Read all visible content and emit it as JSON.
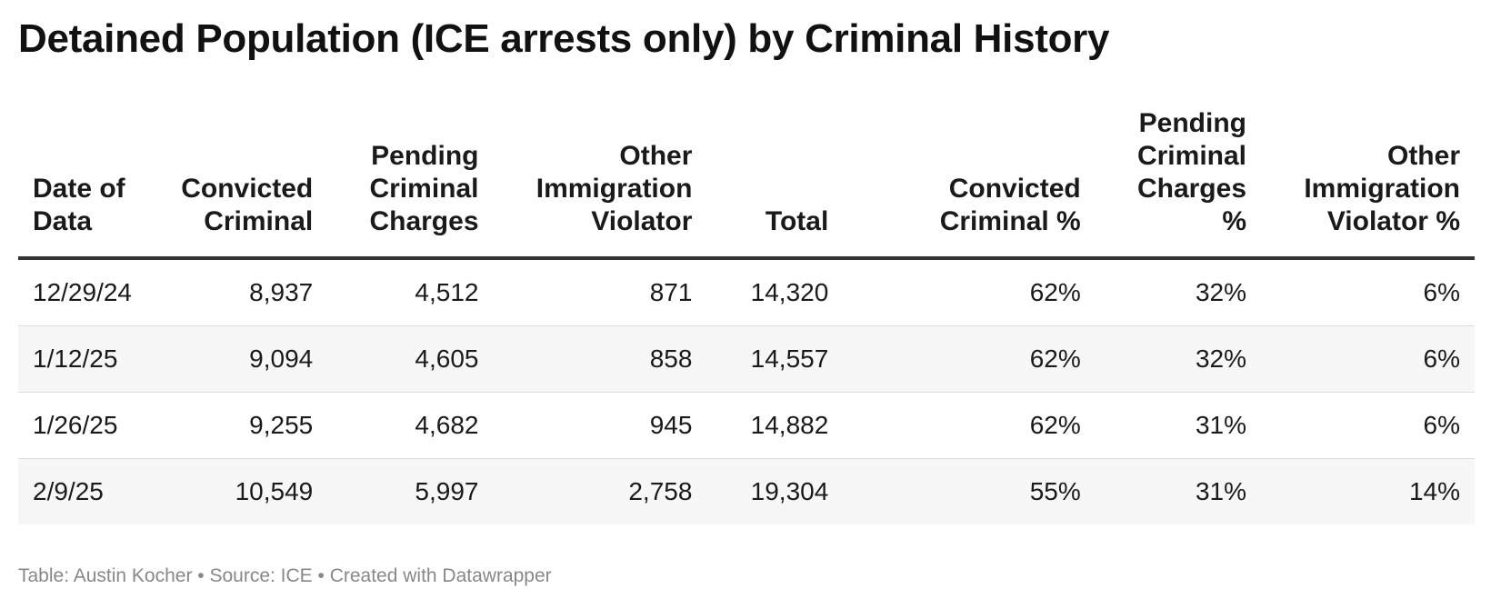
{
  "title": "Detained Population (ICE arrests only) by Criminal History",
  "footer": "Table: Austin Kocher • Source: ICE • Created with Datawrapper",
  "chart_data": {
    "type": "table",
    "title": "Detained Population (ICE arrests only) by Criminal History",
    "columns": [
      {
        "key": "date",
        "label_lines": [
          "Date of",
          "Data"
        ],
        "align": "left"
      },
      {
        "key": "convicted",
        "label_lines": [
          "Convicted",
          "Criminal"
        ],
        "align": "right"
      },
      {
        "key": "pending",
        "label_lines": [
          "Pending",
          "Criminal",
          "Charges"
        ],
        "align": "right"
      },
      {
        "key": "other",
        "label_lines": [
          "Other",
          "Immigration",
          "Violator"
        ],
        "align": "right"
      },
      {
        "key": "total",
        "label_lines": [
          "Total"
        ],
        "align": "right"
      },
      {
        "key": "convicted_pct",
        "label_lines": [
          "Convicted",
          "Criminal %"
        ],
        "align": "right"
      },
      {
        "key": "pending_pct",
        "label_lines": [
          "Pending",
          "Criminal",
          "Charges",
          "%"
        ],
        "align": "right"
      },
      {
        "key": "other_pct",
        "label_lines": [
          "Other",
          "Immigration",
          "Violator %"
        ],
        "align": "right"
      }
    ],
    "rows": [
      [
        "12/29/24",
        "8,937",
        "4,512",
        "871",
        "14,320",
        "62%",
        "32%",
        "6%"
      ],
      [
        "1/12/25",
        "9,094",
        "4,605",
        "858",
        "14,557",
        "62%",
        "32%",
        "6%"
      ],
      [
        "1/26/25",
        "9,255",
        "4,682",
        "945",
        "14,882",
        "62%",
        "31%",
        "6%"
      ],
      [
        "2/9/25",
        "10,549",
        "5,997",
        "2,758",
        "19,304",
        "55%",
        "31%",
        "14%"
      ]
    ]
  }
}
